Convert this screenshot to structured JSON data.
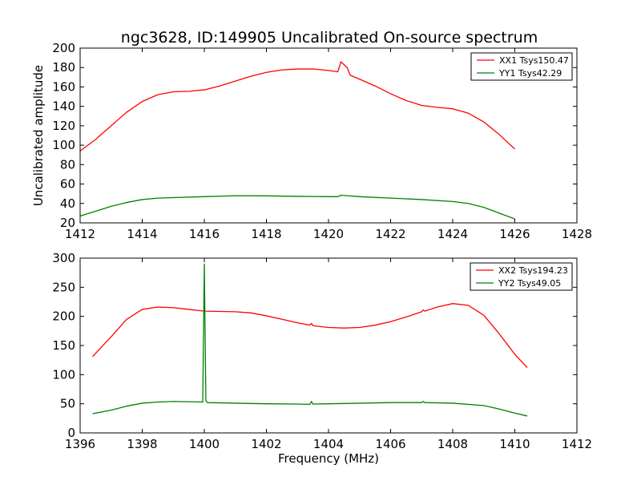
{
  "figure": {
    "title": "ngc3628, ID:149905 Uncalibrated On-source spectrum",
    "ylabel_top": "Uncalibrated amplitude",
    "xlabel_bottom": "Frequency (MHz)"
  },
  "chart_data": [
    {
      "type": "line",
      "title": "ngc3628, ID:149905 Uncalibrated On-source spectrum",
      "xlabel": "",
      "ylabel": "Uncalibrated amplitude",
      "xlim": [
        1412,
        1428
      ],
      "ylim": [
        20,
        200
      ],
      "xticks": [
        1412,
        1414,
        1416,
        1418,
        1420,
        1422,
        1424,
        1426,
        1428
      ],
      "yticks": [
        20,
        40,
        60,
        80,
        100,
        120,
        140,
        160,
        180,
        200
      ],
      "legend_position": "top-right",
      "series": [
        {
          "name": "XX1 Tsys150.47",
          "color": "#ff0000",
          "points": [
            [
              1412,
              94
            ],
            [
              1412.5,
              106
            ],
            [
              1413,
              120
            ],
            [
              1413.5,
              134
            ],
            [
              1414,
              145
            ],
            [
              1414.5,
              152
            ],
            [
              1415,
              155
            ],
            [
              1415.5,
              155.5
            ],
            [
              1416,
              157
            ],
            [
              1416.5,
              161
            ],
            [
              1417,
              166
            ],
            [
              1417.5,
              171
            ],
            [
              1418,
              175
            ],
            [
              1418.5,
              177.5
            ],
            [
              1419,
              178.5
            ],
            [
              1419.5,
              178.5
            ],
            [
              1420,
              177
            ],
            [
              1420.3,
              175.5
            ],
            [
              1420.4,
              186
            ],
            [
              1420.5,
              183
            ],
            [
              1420.6,
              180
            ],
            [
              1420.7,
              172
            ],
            [
              1421,
              168
            ],
            [
              1421.5,
              161
            ],
            [
              1422,
              153
            ],
            [
              1422.5,
              146
            ],
            [
              1423,
              141
            ],
            [
              1423.5,
              139
            ],
            [
              1424,
              137.5
            ],
            [
              1424.5,
              133
            ],
            [
              1425,
              124
            ],
            [
              1425.5,
              111
            ],
            [
              1426,
              96
            ]
          ]
        },
        {
          "name": "YY1 Tsys42.29",
          "color": "#008000",
          "points": [
            [
              1412,
              27
            ],
            [
              1412.5,
              32
            ],
            [
              1413,
              37
            ],
            [
              1413.5,
              41
            ],
            [
              1414,
              44
            ],
            [
              1414.5,
              45.5
            ],
            [
              1415,
              46
            ],
            [
              1416,
              47
            ],
            [
              1417,
              48
            ],
            [
              1418,
              47.8
            ],
            [
              1419,
              47.3
            ],
            [
              1420,
              47
            ],
            [
              1420.3,
              47
            ],
            [
              1420.4,
              48.5
            ],
            [
              1420.6,
              48
            ],
            [
              1421,
              47
            ],
            [
              1422,
              45.5
            ],
            [
              1423,
              44
            ],
            [
              1424,
              42
            ],
            [
              1424.5,
              40
            ],
            [
              1425,
              36
            ],
            [
              1425.5,
              30
            ],
            [
              1426,
              24
            ]
          ]
        }
      ]
    },
    {
      "type": "line",
      "title": "",
      "xlabel": "Frequency (MHz)",
      "ylabel": "",
      "xlim": [
        1396,
        1412
      ],
      "ylim": [
        0,
        300
      ],
      "xticks": [
        1396,
        1398,
        1400,
        1402,
        1404,
        1406,
        1408,
        1410,
        1412
      ],
      "yticks": [
        0,
        50,
        100,
        150,
        200,
        250,
        300
      ],
      "legend_position": "top-right",
      "series": [
        {
          "name": "XX2 Tsys194.23",
          "color": "#ff0000",
          "points": [
            [
              1396.4,
              131
            ],
            [
              1397,
              165
            ],
            [
              1397.5,
              195
            ],
            [
              1398,
              212
            ],
            [
              1398.5,
              216
            ],
            [
              1399,
              215
            ],
            [
              1399.5,
              212
            ],
            [
              1400,
              209
            ],
            [
              1401,
              208
            ],
            [
              1401.5,
              206
            ],
            [
              1402,
              201
            ],
            [
              1402.5,
              195
            ],
            [
              1403,
              189
            ],
            [
              1403.4,
              185
            ],
            [
              1403.45,
              188
            ],
            [
              1403.5,
              184
            ],
            [
              1404,
              181
            ],
            [
              1404.5,
              180
            ],
            [
              1405,
              181
            ],
            [
              1405.5,
              185
            ],
            [
              1406,
              191
            ],
            [
              1406.5,
              199
            ],
            [
              1407,
              208
            ],
            [
              1407.05,
              211
            ],
            [
              1407.1,
              209
            ],
            [
              1407.5,
              216
            ],
            [
              1408,
              222
            ],
            [
              1408.5,
              219
            ],
            [
              1409,
              202
            ],
            [
              1409.5,
              170
            ],
            [
              1410,
              135
            ],
            [
              1410.4,
              112
            ]
          ]
        },
        {
          "name": "YY2 Tsys49.05",
          "color": "#008000",
          "points": [
            [
              1396.4,
              33
            ],
            [
              1397,
              39
            ],
            [
              1397.5,
              46
            ],
            [
              1398,
              51
            ],
            [
              1398.5,
              53
            ],
            [
              1399,
              54
            ],
            [
              1399.5,
              53.5
            ],
            [
              1399.95,
              53
            ],
            [
              1400,
              290
            ],
            [
              1400.05,
              55
            ],
            [
              1400.1,
              52
            ],
            [
              1401,
              51
            ],
            [
              1402,
              50
            ],
            [
              1403,
              49.5
            ],
            [
              1403.4,
              49
            ],
            [
              1403.45,
              54
            ],
            [
              1403.5,
              49.5
            ],
            [
              1404,
              50
            ],
            [
              1405,
              51
            ],
            [
              1406,
              52
            ],
            [
              1407,
              52
            ],
            [
              1407.05,
              54
            ],
            [
              1407.1,
              52
            ],
            [
              1408,
              51
            ],
            [
              1409,
              47
            ],
            [
              1409.5,
              41
            ],
            [
              1410,
              34
            ],
            [
              1410.4,
              29
            ]
          ]
        }
      ]
    }
  ]
}
